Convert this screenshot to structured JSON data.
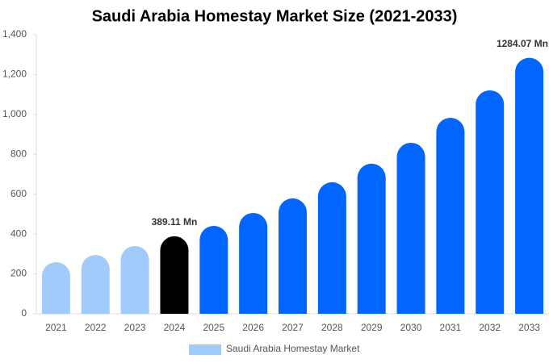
{
  "chart_data": {
    "type": "bar",
    "title": "Saudi Arabia Homestay Market Size (2021-2033)",
    "categories": [
      "2021",
      "2022",
      "2023",
      "2024",
      "2025",
      "2026",
      "2027",
      "2028",
      "2029",
      "2030",
      "2031",
      "2032",
      "2033"
    ],
    "series": [
      {
        "name": "Saudi Arabia Homestay Market",
        "color": "#a0cbfa",
        "values": [
          259,
          295,
          340,
          389.11,
          441,
          506,
          579,
          660,
          753,
          858,
          983,
          1121,
          1284.07
        ],
        "value_labels": [
          null,
          null,
          null,
          "389.11 Mn",
          null,
          null,
          null,
          null,
          null,
          null,
          null,
          null,
          "1284.07 Mn"
        ],
        "bar_colors": [
          "#a0cbfa",
          "#a0cbfa",
          "#a0cbfa",
          "#000000",
          "#0066ff",
          "#0066ff",
          "#0066ff",
          "#0066ff",
          "#0066ff",
          "#0066ff",
          "#0066ff",
          "#0066ff",
          "#0066ff"
        ]
      }
    ],
    "ylim": [
      0,
      1400
    ],
    "yticks": [
      0,
      200,
      400,
      600,
      800,
      {
        "value": 1000,
        "label": "1,000"
      },
      {
        "value": 1200,
        "label": "1,200"
      },
      {
        "value": 1400,
        "label": "1,400"
      }
    ],
    "legend": "bottom"
  }
}
